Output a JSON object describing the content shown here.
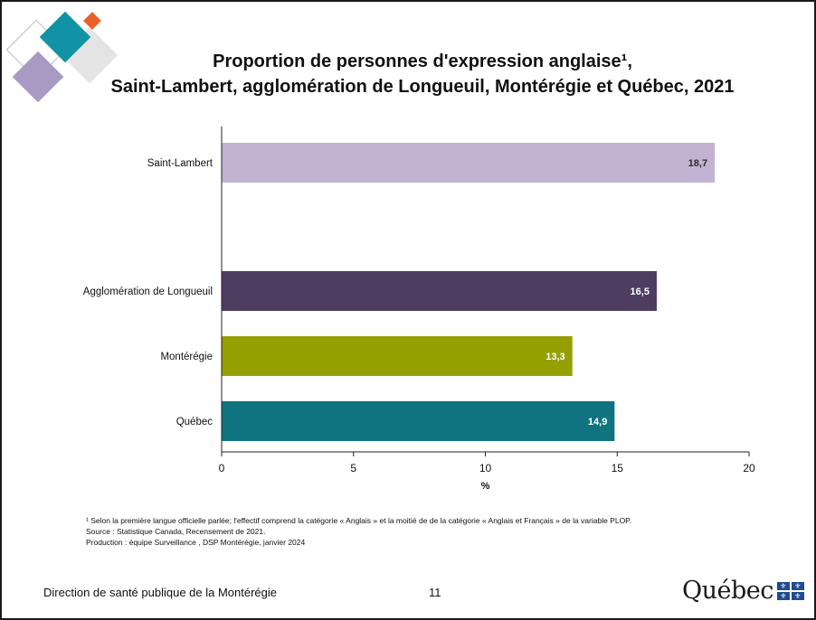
{
  "title": {
    "line1": "Proportion de personnes d'expression anglaise¹,",
    "line2": "Saint-Lambert, agglomération de Longueuil, Montérégie et Québec, 2021"
  },
  "chart_data": {
    "type": "bar",
    "orientation": "horizontal",
    "categories": [
      "Saint-Lambert",
      "Agglomération de Longueuil",
      "Montérégie",
      "Québec"
    ],
    "values": [
      18.7,
      16.5,
      13.3,
      14.9
    ],
    "value_labels": [
      "18,7",
      "16,5",
      "13,3",
      "14,9"
    ],
    "colors": [
      "#c2b3d3",
      "#4f3c61",
      "#94a000",
      "#0f7480"
    ],
    "xlabel": "%",
    "xlim": [
      0,
      20
    ],
    "xticks": [
      0,
      5,
      10,
      15,
      20
    ],
    "grid": false,
    "legend": "none"
  },
  "footnotes": {
    "note1": "¹ Selon la première langue officielle parlée; l'effectif comprend la catégorie « Anglais » et la moitié de de la catégorie « Anglais et Français » de la variable PLOP.",
    "source": "Source : Statistique Canada, Recensement de 2021.",
    "production": "Production : équipe Surveillance , DSP Montérégie, janvier 2024"
  },
  "footer": {
    "organization": "Direction de santé publique de la Montérégie",
    "page_number": "11",
    "logo_text": "Québec",
    "logo_icon": "fleur-de-lis-flag-icon"
  },
  "decoration": {
    "colors": [
      "#1193a5",
      "#e8622a",
      "#a99ac4",
      "#e3e3e3"
    ]
  }
}
